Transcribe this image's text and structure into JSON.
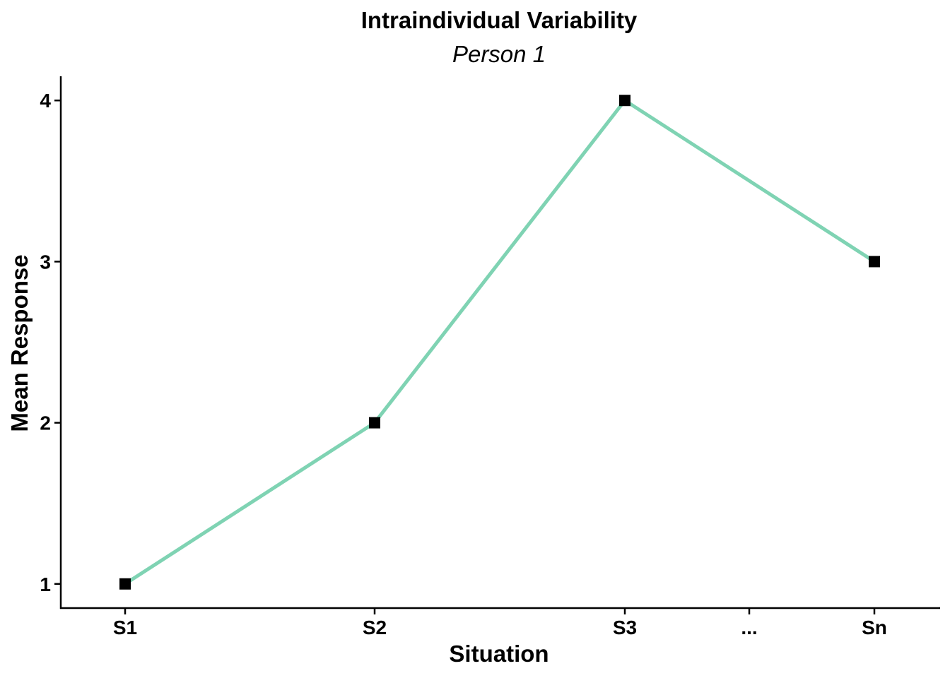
{
  "chart_data": {
    "type": "line",
    "title": "Intraindividual Variability",
    "subtitle": "Person 1",
    "xlabel": "Situation",
    "ylabel": "Mean Response",
    "categories": [
      "S1",
      "S2",
      "S3",
      "...",
      "Sn"
    ],
    "series": [
      {
        "x": [
          "S1",
          "S2",
          "S3",
          "Sn"
        ],
        "values": [
          1,
          2,
          4,
          3
        ]
      }
    ],
    "ylim": [
      0.85,
      4.15
    ],
    "yticks": [
      1,
      2,
      3,
      4
    ],
    "grid": false,
    "legend": "none",
    "colors": {
      "line": "#7fd3b3",
      "marker": "#000000",
      "axis": "#000000"
    }
  }
}
